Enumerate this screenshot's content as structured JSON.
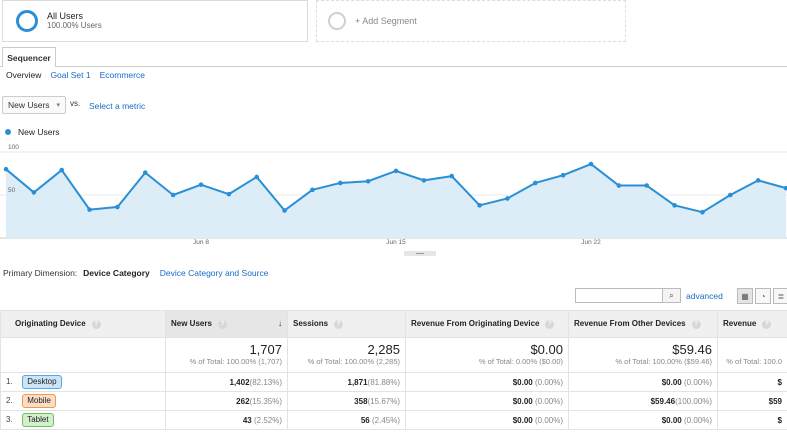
{
  "segments": {
    "all_users": {
      "title": "All Users",
      "subtitle": "100.00% Users"
    },
    "add_segment": {
      "label": "+ Add Segment"
    }
  },
  "tabs": {
    "active": "Sequencer"
  },
  "subtabs": {
    "overview": "Overview",
    "goal_set": "Goal Set 1",
    "ecommerce": "Ecommerce"
  },
  "metric": {
    "selected": "New Users",
    "vs": "vs.",
    "select_metric": "Select a metric"
  },
  "legend": {
    "series": "New Users",
    "color": "#2a8fd5"
  },
  "chart_data": {
    "type": "area",
    "series": [
      {
        "name": "New Users",
        "values": [
          80,
          53,
          79,
          33,
          36,
          76,
          50,
          62,
          51,
          71,
          32,
          56,
          64,
          66,
          78,
          67,
          72,
          38,
          46,
          64,
          73,
          86,
          61,
          61,
          38,
          30,
          50,
          67,
          58
        ]
      }
    ],
    "ylim": [
      0,
      100
    ],
    "y_ticks": [
      {
        "value": 100,
        "label": "100"
      },
      {
        "value": 50,
        "label": "50"
      }
    ],
    "x_ticks": [
      {
        "index": 7,
        "label": "Jun 8"
      },
      {
        "index": 14,
        "label": "Jun 15"
      },
      {
        "index": 21,
        "label": "Jun 22"
      }
    ],
    "grid": true,
    "line_color": "#2a8fd5",
    "fill_color": "#dcedf8"
  },
  "primary_dimension": {
    "label": "Primary Dimension:",
    "active": "Device Category",
    "alternate": "Device Category and Source"
  },
  "toolbar": {
    "search_icon": "⌕",
    "advanced": "advanced",
    "view_grid": "▦",
    "view_pie": "◔",
    "view_bars": "≣"
  },
  "table": {
    "headers": {
      "originating_device": "Originating Device",
      "new_users": "New Users",
      "sessions": "Sessions",
      "revenue_originating": "Revenue From Originating Device",
      "revenue_other": "Revenue From Other Devices",
      "revenue": "Revenue",
      "sort_arrow": "↓",
      "help": "?"
    },
    "totals": {
      "new_users": "1,707",
      "new_users_sub": "% of Total: 100.00% (1,707)",
      "sessions": "2,285",
      "sessions_sub": "% of Total: 100.00% (2,285)",
      "revenue_originating": "$0.00",
      "revenue_originating_sub": "% of Total: 0.00% ($0.00)",
      "revenue_other": "$59.46",
      "revenue_other_sub": "% of Total: 100.00% ($59.46)",
      "revenue_sub": "% of Total: 100.0"
    },
    "rows": [
      {
        "num": "1.",
        "device": "Desktop",
        "new_users": "1,402",
        "new_users_pct": "(82.13%)",
        "sessions": "1,871",
        "sessions_pct": "(81.88%)",
        "rev_orig": "$0.00",
        "rev_orig_pct": "(0.00%)",
        "rev_other": "$0.00",
        "rev_other_pct": "(0.00%)",
        "revenue": "$"
      },
      {
        "num": "2.",
        "device": "Mobile",
        "new_users": "262",
        "new_users_pct": "(15.35%)",
        "sessions": "358",
        "sessions_pct": "(15.67%)",
        "rev_orig": "$0.00",
        "rev_orig_pct": "(0.00%)",
        "rev_other": "$59.46",
        "rev_other_pct": "(100.00%)",
        "revenue": "$59"
      },
      {
        "num": "3.",
        "device": "Tablet",
        "new_users": "43",
        "new_users_pct": "(2.52%)",
        "sessions": "56",
        "sessions_pct": "(2.45%)",
        "rev_orig": "$0.00",
        "rev_orig_pct": "(0.00%)",
        "rev_other": "$0.00",
        "rev_other_pct": "(0.00%)",
        "revenue": "$"
      }
    ]
  }
}
